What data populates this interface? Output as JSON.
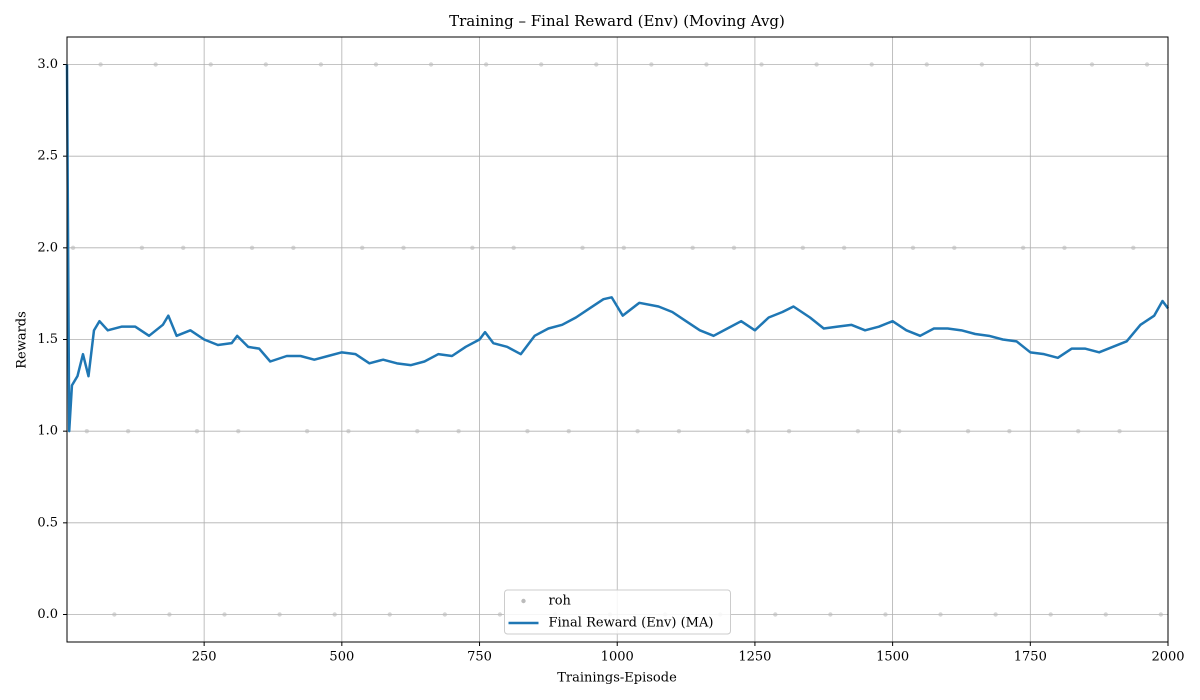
{
  "chart_data": {
    "type": "line",
    "title": "Training – Final Reward (Env) (Moving Avg)",
    "xlabel": "Trainings-Episode",
    "ylabel": "Rewards",
    "xlim": [
      1,
      2000
    ],
    "ylim": [
      -0.15,
      3.15
    ],
    "xticks": [
      250,
      500,
      750,
      1000,
      1250,
      1500,
      1750,
      2000
    ],
    "yticks": [
      {
        "value": 0,
        "label": "0.0"
      },
      0.5,
      {
        "value": 1,
        "label": "1.0"
      },
      1.5,
      {
        "value": 2,
        "label": "2.0"
      },
      2.5,
      {
        "value": 3,
        "label": "3.0"
      }
    ],
    "grid": true,
    "legend": "lower center",
    "series": [
      {
        "name": "roh",
        "type": "scatter",
        "color": "#bbbbbb",
        "x": [
          12,
          37,
          62,
          87,
          112,
          137,
          162,
          187,
          212,
          237,
          262,
          287,
          312,
          337,
          362,
          387,
          412,
          437,
          462,
          487,
          512,
          537,
          562,
          587,
          612,
          637,
          662,
          687,
          712,
          737,
          762,
          787,
          812,
          837,
          862,
          887,
          912,
          937,
          962,
          987,
          1012,
          1037,
          1062,
          1087,
          1112,
          1137,
          1162,
          1187,
          1212,
          1237,
          1262,
          1287,
          1312,
          1337,
          1362,
          1387,
          1412,
          1437,
          1462,
          1487,
          1512,
          1537,
          1562,
          1587,
          1612,
          1637,
          1662,
          1687,
          1712,
          1737,
          1762,
          1787,
          1812,
          1837,
          1862,
          1887,
          1912,
          1937,
          1962,
          1987
        ],
        "values": [
          2,
          1,
          3,
          0,
          1,
          2,
          3,
          0,
          2,
          1,
          3,
          0,
          1,
          2,
          3,
          0,
          2,
          1,
          3,
          0,
          1,
          2,
          3,
          0,
          2,
          1,
          3,
          0,
          1,
          2,
          3,
          0,
          2,
          1,
          3,
          0,
          1,
          2,
          3,
          0,
          2,
          1,
          3,
          0,
          1,
          2,
          3,
          0,
          2,
          1,
          3,
          0,
          1,
          2,
          3,
          0,
          2,
          1,
          3,
          0,
          1,
          2,
          3,
          0,
          2,
          1,
          3,
          0,
          1,
          2,
          3,
          0,
          2,
          1,
          3,
          0,
          1,
          2,
          3,
          0
        ]
      },
      {
        "name": "Final Reward (Env) (MA)",
        "type": "line",
        "color": "#1f77b4",
        "x": [
          1,
          5,
          10,
          20,
          30,
          40,
          50,
          60,
          75,
          100,
          125,
          150,
          175,
          185,
          200,
          225,
          250,
          275,
          300,
          310,
          330,
          350,
          370,
          400,
          425,
          450,
          475,
          500,
          525,
          550,
          575,
          600,
          625,
          650,
          675,
          700,
          725,
          750,
          760,
          775,
          800,
          825,
          850,
          875,
          900,
          925,
          950,
          975,
          990,
          1010,
          1040,
          1075,
          1100,
          1125,
          1150,
          1175,
          1200,
          1225,
          1250,
          1275,
          1300,
          1320,
          1350,
          1375,
          1400,
          1425,
          1450,
          1475,
          1500,
          1525,
          1550,
          1575,
          1600,
          1625,
          1650,
          1675,
          1700,
          1725,
          1750,
          1775,
          1800,
          1825,
          1850,
          1875,
          1900,
          1925,
          1950,
          1975,
          1990,
          2000
        ],
        "values": [
          3.0,
          1.0,
          1.25,
          1.3,
          1.42,
          1.3,
          1.55,
          1.6,
          1.55,
          1.57,
          1.57,
          1.52,
          1.58,
          1.63,
          1.52,
          1.55,
          1.5,
          1.47,
          1.48,
          1.52,
          1.46,
          1.45,
          1.38,
          1.41,
          1.41,
          1.39,
          1.41,
          1.43,
          1.42,
          1.37,
          1.39,
          1.37,
          1.36,
          1.38,
          1.42,
          1.41,
          1.46,
          1.5,
          1.54,
          1.48,
          1.46,
          1.42,
          1.52,
          1.56,
          1.58,
          1.62,
          1.67,
          1.72,
          1.73,
          1.63,
          1.7,
          1.68,
          1.65,
          1.6,
          1.55,
          1.52,
          1.56,
          1.6,
          1.55,
          1.62,
          1.65,
          1.68,
          1.62,
          1.56,
          1.57,
          1.58,
          1.55,
          1.57,
          1.6,
          1.55,
          1.52,
          1.56,
          1.56,
          1.55,
          1.53,
          1.52,
          1.5,
          1.49,
          1.43,
          1.42,
          1.4,
          1.45,
          1.45,
          1.43,
          1.46,
          1.49,
          1.58,
          1.63,
          1.71,
          1.67
        ]
      }
    ]
  }
}
